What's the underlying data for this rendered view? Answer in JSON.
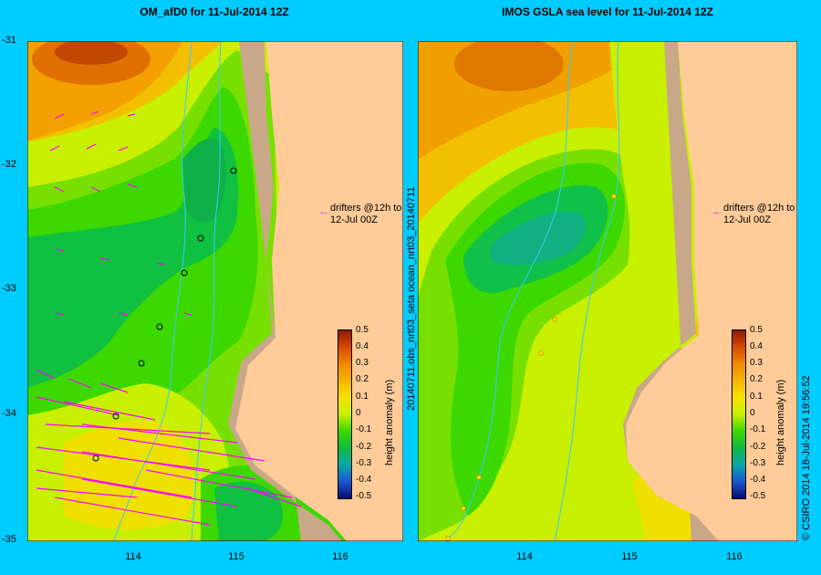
{
  "left_panel": {
    "title": "OM_afD0 for 11-Jul-2014 12Z",
    "annotation_line1": "drifters @12h to",
    "annotation_line2": "12-Jul 00Z",
    "colorbar_label": "height anomaly (m)"
  },
  "right_panel": {
    "title": "IMOS GSLA sea level  for 11-Jul-2014 12Z",
    "side_label": "20140711.obs_nrt03_seta    ocean_nrt03_20140711",
    "annotation_line1": "drifters @12h to",
    "annotation_line2": "12-Jul 00Z",
    "colorbar_label": "height anomaly (m)"
  },
  "y_ticks": [
    "-31",
    "-32",
    "-33",
    "-34",
    "-35"
  ],
  "x_ticks": [
    "114",
    "115",
    "116"
  ],
  "colorbar_ticks": [
    "0.5",
    "0.4",
    "0.3",
    "0.2",
    "0.1",
    "0",
    "-0.1",
    "-0.2",
    "-0.3",
    "-0.4",
    "-0.5"
  ],
  "credit": "© CSIRO 2014   18-Jul-2014 19:56:52",
  "colors": {
    "background": "#00ccff",
    "land": "#ffcc99",
    "shelf": "#c8a888",
    "arrows": "#ff00ff"
  }
}
